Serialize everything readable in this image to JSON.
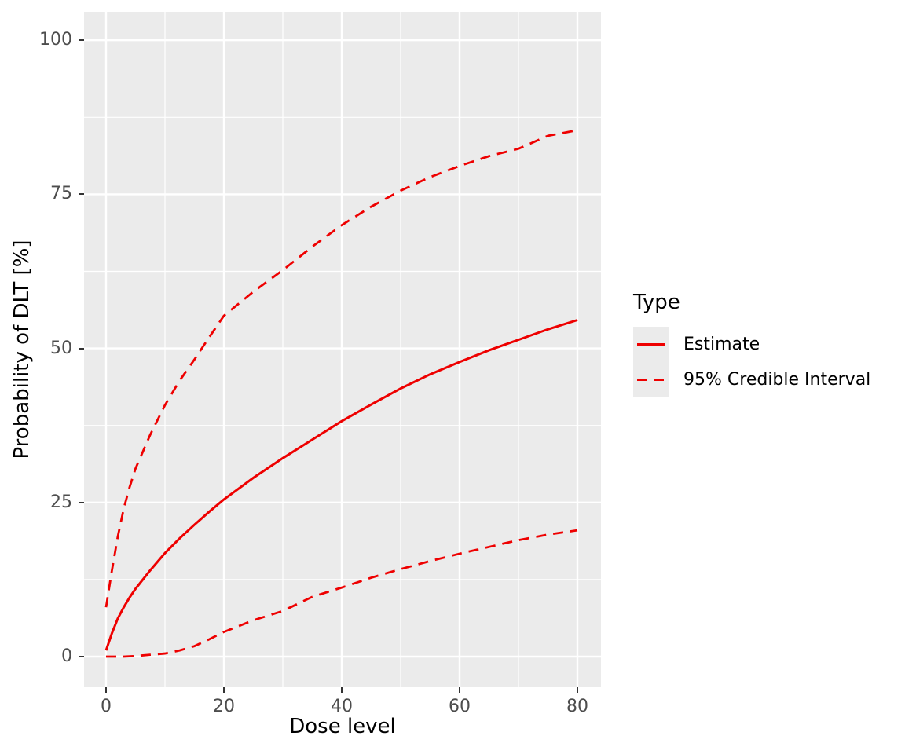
{
  "colors": {
    "series_red": "#EE0000",
    "panel_background": "#EBEBEB",
    "grid_line": "#FFFFFF",
    "axis_text": "#4D4D4D",
    "axis_title": "#000000",
    "tick_mark": "#333333",
    "legend_key_background": "#EBEBEB",
    "page_background": "#FFFFFF"
  },
  "legend": {
    "title": "Type",
    "items": [
      {
        "label": "Estimate",
        "linetype": "solid"
      },
      {
        "label": "95% Credible Interval",
        "linetype": "dashed"
      }
    ]
  },
  "chart_data": {
    "type": "line",
    "title": "",
    "xlabel": "Dose level",
    "ylabel": "Probability of DLT [%]",
    "xlim": [
      0,
      80
    ],
    "ylim": [
      0,
      100
    ],
    "x_ticks": [
      0,
      20,
      40,
      60,
      80
    ],
    "x_minor_ticks": [
      10,
      30,
      50,
      70
    ],
    "y_ticks": [
      0,
      25,
      50,
      75,
      100
    ],
    "y_minor_ticks": [
      12.5,
      37.5,
      62.5,
      87.5
    ],
    "grid": true,
    "legend_position": "right",
    "x": [
      0,
      1,
      2,
      3,
      4,
      5,
      7.5,
      10,
      12.5,
      15,
      17.5,
      20,
      25,
      30,
      35,
      40,
      45,
      50,
      55,
      60,
      65,
      70,
      75,
      80
    ],
    "series": [
      {
        "name": "Estimate",
        "style": "solid",
        "values": [
          1.0,
          3.8,
          6.2,
          8.0,
          9.6,
          11.0,
          14.0,
          16.8,
          19.2,
          21.4,
          23.5,
          25.5,
          29.0,
          32.2,
          35.2,
          38.2,
          40.9,
          43.5,
          45.8,
          47.8,
          49.7,
          51.4,
          53.1,
          54.6
        ]
      },
      {
        "name": "95% Credible Interval (upper)",
        "style": "dashed",
        "values": [
          8.0,
          14.0,
          19.5,
          24.0,
          27.5,
          30.5,
          36.0,
          40.8,
          44.8,
          48.2,
          51.8,
          55.3,
          59.2,
          62.7,
          66.5,
          70.0,
          73.0,
          75.6,
          77.8,
          79.6,
          81.2,
          82.4,
          84.5,
          85.4
        ]
      },
      {
        "name": "95% Credible Interval (lower)",
        "style": "dashed",
        "values": [
          0,
          0,
          0,
          0,
          0.05,
          0.1,
          0.3,
          0.5,
          1.0,
          1.7,
          2.8,
          4.0,
          5.9,
          7.4,
          9.7,
          11.2,
          12.8,
          14.2,
          15.5,
          16.7,
          17.8,
          18.9,
          19.8,
          20.5
        ]
      }
    ]
  }
}
